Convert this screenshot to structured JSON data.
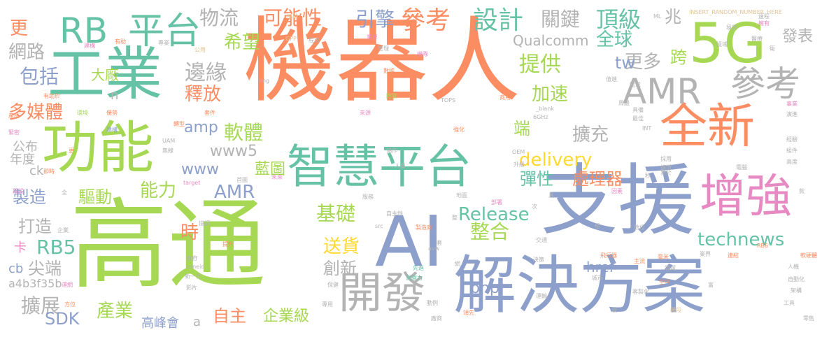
{
  "palette": {
    "orange": "#fc8d62",
    "green": "#a6d854",
    "blue": "#8da0cb",
    "teal": "#66c2a5",
    "pink": "#e78ac3",
    "gray": "#b3b3b3",
    "sand": "#e5c494",
    "yellow": "#ffd92f"
  },
  "words": [
    {
      "text": "機器人",
      "color": "orange"
    },
    {
      "text": "高通",
      "color": "green"
    },
    {
      "text": "支援",
      "color": "blue"
    },
    {
      "text": "AI",
      "color": "blue"
    },
    {
      "text": "解決方案",
      "color": "blue"
    },
    {
      "text": "工業",
      "color": "teal"
    },
    {
      "text": "功能",
      "color": "green"
    },
    {
      "text": "5G",
      "color": "green"
    },
    {
      "text": "全新",
      "color": "orange"
    },
    {
      "text": "智慧平台",
      "color": "teal"
    },
    {
      "text": "增強",
      "color": "pink"
    },
    {
      "text": "開發",
      "color": "gray"
    },
    {
      "text": "AMR",
      "color": "gray"
    },
    {
      "text": "參考",
      "color": "gray"
    },
    {
      "text": "RB",
      "color": "teal"
    },
    {
      "text": "平台",
      "color": "teal"
    },
    {
      "text": "參考",
      "color": "orange"
    },
    {
      "text": "設計",
      "color": "teal"
    },
    {
      "text": "頂級",
      "color": "teal"
    },
    {
      "text": "可能性",
      "color": "orange"
    },
    {
      "text": "物流",
      "color": "gray"
    },
    {
      "text": "引擎",
      "color": "blue"
    },
    {
      "text": "關鍵",
      "color": "gray"
    },
    {
      "text": "兆",
      "color": "gray"
    },
    {
      "text": "全球",
      "color": "teal"
    },
    {
      "text": "跨",
      "color": "green"
    },
    {
      "text": "發表",
      "color": "gray"
    },
    {
      "text": "提供",
      "color": "green"
    },
    {
      "text": "更多",
      "color": "gray"
    },
    {
      "text": "Qualcomm",
      "color": "gray"
    },
    {
      "text": "希望",
      "color": "green"
    },
    {
      "text": "網路",
      "color": "gray"
    },
    {
      "text": "包括",
      "color": "blue"
    },
    {
      "text": "大廠",
      "color": "green"
    },
    {
      "text": "邊緣",
      "color": "gray"
    },
    {
      "text": "釋放",
      "color": "orange"
    },
    {
      "text": "加速",
      "color": "green"
    },
    {
      "text": "tw",
      "color": "blue"
    },
    {
      "text": "更",
      "color": "orange"
    },
    {
      "text": "多媒體",
      "color": "orange"
    },
    {
      "text": "amp",
      "color": "blue"
    },
    {
      "text": "軟體",
      "color": "green"
    },
    {
      "text": "擴充",
      "color": "gray"
    },
    {
      "text": "端",
      "color": "green"
    },
    {
      "text": "www5",
      "color": "gray"
    },
    {
      "text": "www",
      "color": "blue"
    },
    {
      "text": "delivery",
      "color": "yellow"
    },
    {
      "text": "藍圖",
      "color": "green"
    },
    {
      "text": "彈性",
      "color": "teal"
    },
    {
      "text": "處理器",
      "color": "orange"
    },
    {
      "text": "AMR",
      "color": "blue"
    },
    {
      "text": "能力",
      "color": "green"
    },
    {
      "text": "製造",
      "color": "blue"
    },
    {
      "text": "驅動",
      "color": "green"
    },
    {
      "text": "基礎",
      "color": "green"
    },
    {
      "text": "Release",
      "color": "teal"
    },
    {
      "text": "整合",
      "color": "green"
    },
    {
      "text": "打造",
      "color": "gray"
    },
    {
      "text": "時",
      "color": "orange"
    },
    {
      "text": "RB5",
      "color": "teal"
    },
    {
      "text": "卡",
      "color": "pink"
    },
    {
      "text": "送貨",
      "color": "yellow"
    },
    {
      "text": "technews",
      "color": "teal"
    },
    {
      "text": "尖端",
      "color": "gray"
    },
    {
      "text": "創新",
      "color": "gray"
    },
    {
      "text": "php",
      "color": "blue"
    },
    {
      "text": "擴展",
      "color": "gray"
    },
    {
      "text": "產業",
      "color": "green"
    },
    {
      "text": "href",
      "color": "blue"
    },
    {
      "text": "SDK",
      "color": "blue"
    },
    {
      "text": "自主",
      "color": "orange"
    },
    {
      "text": "企業級",
      "color": "green"
    },
    {
      "text": "高峰會",
      "color": "blue"
    },
    {
      "text": "a4b3f35b",
      "color": "gray"
    },
    {
      "text": "公布",
      "color": "gray"
    },
    {
      "text": "年度",
      "color": "gray"
    },
    {
      "text": "cb",
      "color": "blue"
    },
    {
      "text": "ck",
      "color": "gray"
    },
    {
      "text": "n",
      "color": "gray"
    },
    {
      "text": "a",
      "color": "gray"
    },
    {
      "text": "INSERT_RANDOM_NUMBER_HERE",
      "color": "sand"
    },
    {
      "text": "協助",
      "color": "sand"
    },
    {
      "text": "GPP",
      "color": "sand"
    },
    {
      "text": "程式",
      "color": "gray"
    },
    {
      "text": "業界",
      "color": "pink"
    },
    {
      "text": "管理",
      "color": "gray"
    },
    {
      "text": "機隊",
      "color": "pink"
    },
    {
      "text": "CV",
      "color": "orange"
    },
    {
      "text": "數據",
      "color": "orange"
    },
    {
      "text": "建構",
      "color": "pink"
    },
    {
      "text": "有助",
      "color": "orange"
    },
    {
      "text": "公用",
      "color": "sand"
    },
    {
      "text": "img",
      "color": "gray"
    },
    {
      "text": "防禦",
      "color": "green"
    },
    {
      "text": "TOPS",
      "color": "gray"
    },
    {
      "text": "商用",
      "color": "orange"
    },
    {
      "text": "有助於",
      "color": "orange"
    },
    {
      "text": "環境",
      "color": "green"
    },
    {
      "text": "優勢",
      "color": "orange"
    },
    {
      "text": "建構",
      "color": "blue"
    },
    {
      "text": "產品",
      "color": "orange"
    },
    {
      "text": "緊密",
      "color": "pink"
    },
    {
      "text": "套件",
      "color": "orange"
    },
    {
      "text": "來源",
      "color": "pink"
    },
    {
      "text": "轉型",
      "color": "orange"
    },
    {
      "text": "UAM",
      "color": "gray"
    },
    {
      "text": "無線",
      "color": "gray"
    },
    {
      "text": "協作",
      "color": "gray"
    },
    {
      "text": "強化",
      "color": "orange"
    },
    {
      "text": "_blank",
      "color": "gray"
    },
    {
      "text": "6GHz",
      "color": "gray"
    },
    {
      "text": "OEM",
      "color": "gray"
    },
    {
      "text": "人員",
      "color": "gray"
    },
    {
      "text": "升級",
      "color": "gray"
    },
    {
      "text": "首圖",
      "color": "gray"
    },
    {
      "text": "未來",
      "color": "pink"
    },
    {
      "text": "target",
      "color": "pink"
    },
    {
      "text": "即時",
      "color": "orange"
    },
    {
      "text": "全",
      "color": "gray"
    },
    {
      "text": "企業",
      "color": "gray"
    },
    {
      "text": "服務",
      "color": "gray"
    },
    {
      "text": "地面",
      "color": "gray"
    },
    {
      "text": "部署",
      "color": "pink"
    },
    {
      "text": "自主性",
      "color": "gray"
    },
    {
      "text": "製造商",
      "color": "orange"
    },
    {
      "text": "src",
      "color": "gray"
    },
    {
      "text": "協調",
      "color": "gray"
    },
    {
      "text": "提升",
      "color": "orange"
    },
    {
      "text": "政府",
      "color": "gray"
    },
    {
      "text": "zoneid",
      "color": "gray"
    },
    {
      "text": "新一代",
      "color": "gray"
    },
    {
      "text": "影片",
      "color": "gray"
    },
    {
      "text": "avw",
      "color": "gray"
    },
    {
      "text": "先進",
      "color": "teal"
    },
    {
      "text": "洞察力",
      "color": "teal"
    },
    {
      "text": "保健",
      "color": "gray"
    },
    {
      "text": "運網",
      "color": "pink"
    },
    {
      "text": "方位",
      "color": "orange"
    },
    {
      "text": "專用",
      "color": "gray"
    },
    {
      "text": "動例",
      "color": "gray"
    },
    {
      "text": "廠商",
      "color": "gray"
    },
    {
      "text": "領先",
      "color": "orange"
    },
    {
      "text": "交通",
      "color": "gray"
    },
    {
      "text": "決策",
      "color": "gray"
    },
    {
      "text": "城市",
      "color": "gray"
    },
    {
      "text": "飛行器",
      "color": "orange"
    },
    {
      "text": "主流",
      "color": "orange"
    },
    {
      "text": "毫米",
      "color": "orange"
    },
    {
      "text": "領域",
      "color": "gray"
    },
    {
      "text": "業界",
      "color": "gray"
    },
    {
      "text": "連結",
      "color": "orange"
    },
    {
      "text": "空中",
      "color": "orange"
    },
    {
      "text": "數位",
      "color": "gray"
    },
    {
      "text": "因素",
      "color": "pink"
    },
    {
      "text": "易於",
      "color": "gray"
    },
    {
      "text": "電腦",
      "color": "gray"
    },
    {
      "text": "高度",
      "color": "gray"
    },
    {
      "text": "組件",
      "color": "gray"
    },
    {
      "text": "經驗",
      "color": "gray"
    },
    {
      "text": "演進",
      "color": "gray"
    },
    {
      "text": "事業",
      "color": "pink"
    },
    {
      "text": "INT",
      "color": "gray"
    },
    {
      "text": "最佳",
      "color": "gray"
    },
    {
      "text": "具備",
      "color": "gray"
    },
    {
      "text": "周邊",
      "color": "gray"
    },
    {
      "text": "需求",
      "color": "gray"
    },
    {
      "text": "採用",
      "color": "gray"
    },
    {
      "text": "擴增",
      "color": "gray"
    },
    {
      "text": "境域",
      "color": "gray"
    },
    {
      "text": "醫療",
      "color": "gray"
    },
    {
      "text": "擁有",
      "color": "pink"
    },
    {
      "text": "境界",
      "color": "gray"
    },
    {
      "text": "值進",
      "color": "gray"
    },
    {
      "text": "ML",
      "color": "gray"
    },
    {
      "text": "秒",
      "color": "gray"
    },
    {
      "text": "整",
      "color": "gray"
    },
    {
      "text": "次",
      "color": "gray"
    },
    {
      "text": "極",
      "color": "gray"
    },
    {
      "text": "運輸",
      "color": "gray"
    },
    {
      "text": "RB6",
      "color": "orange"
    },
    {
      "text": "軟硬體",
      "color": "orange"
    },
    {
      "text": "人機",
      "color": "gray"
    },
    {
      "text": "自動化",
      "color": "gray"
    },
    {
      "text": "架構",
      "color": "gray"
    },
    {
      "text": "工具",
      "color": "gray"
    },
    {
      "text": "零售",
      "color": "gray"
    },
    {
      "text": "款",
      "color": "gray"
    },
    {
      "text": "頻段",
      "color": "sand"
    },
    {
      "text": "客製化",
      "color": "gray"
    },
    {
      "text": "波",
      "color": "gray"
    },
    {
      "text": "富",
      "color": "gray"
    },
    {
      "text": "套",
      "color": "gray"
    },
    {
      "text": "網",
      "color": "gray"
    },
    {
      "text": "具",
      "color": "gray"
    },
    {
      "text": "更",
      "color": "orange"
    },
    {
      "text": "段設",
      "color": "pink"
    },
    {
      "text": "專業",
      "color": "gray"
    },
    {
      "text": "遠程",
      "color": "gray"
    },
    {
      "text": "衛",
      "color": "gray"
    }
  ]
}
